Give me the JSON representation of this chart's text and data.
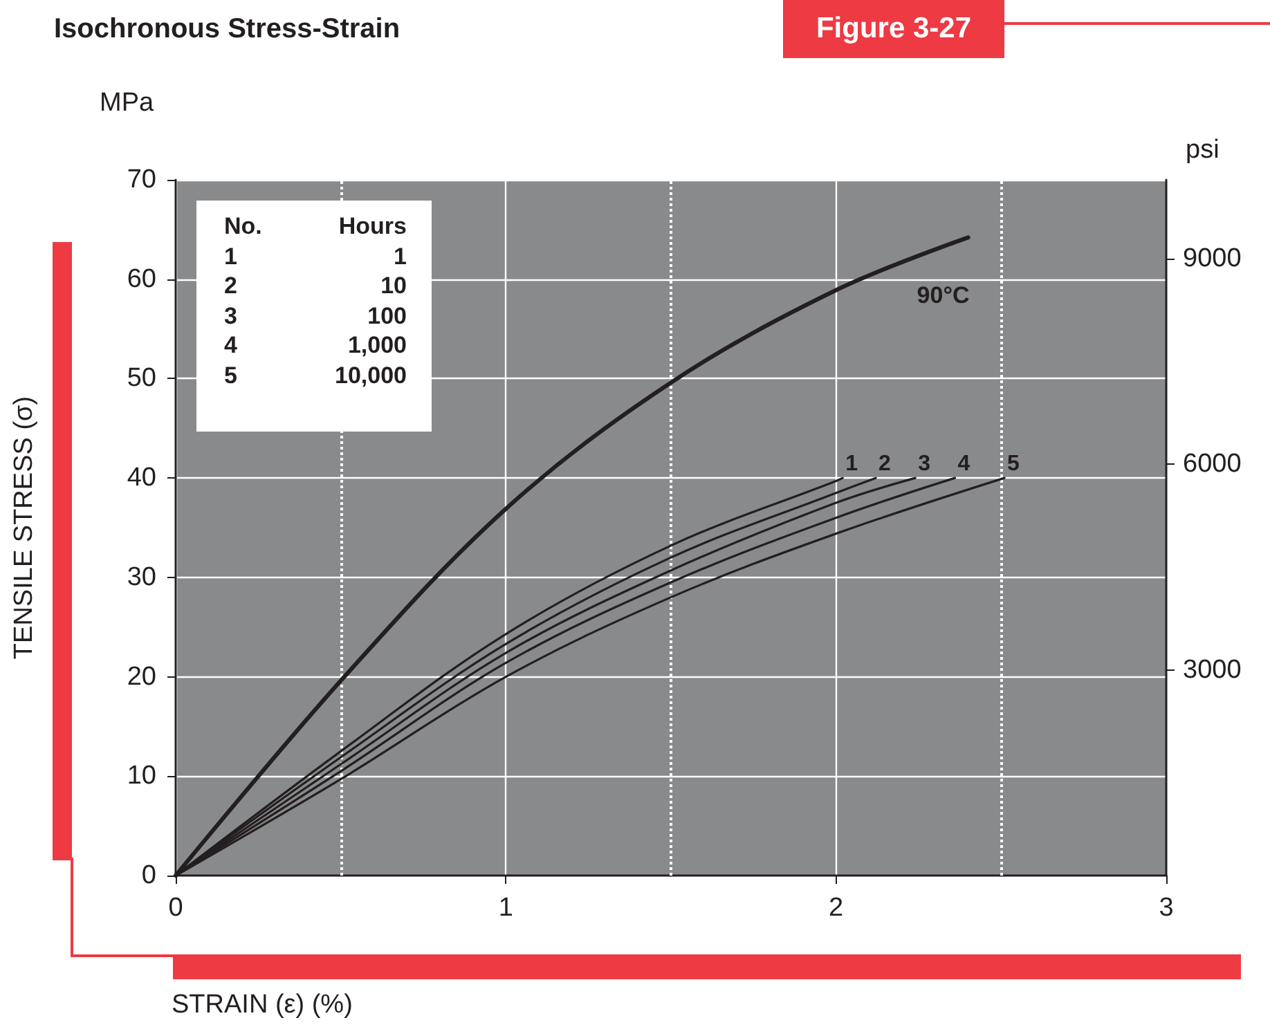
{
  "chart_data": {
    "type": "line",
    "title": "Isochronous Stress-Strain",
    "xlabel": "STRAIN (ε) (%)",
    "ylabel": "TENSILE STRESS (σ)",
    "y2label": "psi",
    "annotations": [
      "Figure 3-27",
      "MPa",
      "No.",
      "Hours",
      "1",
      "1",
      "2",
      "10",
      "3",
      "100",
      "4",
      "1,000",
      "5",
      "10,000"
    ],
    "xlim": [
      0,
      3
    ],
    "xticks": [
      0,
      1,
      2,
      3
    ],
    "ylim": [
      0,
      70
    ],
    "yticks": [
      0,
      10,
      20,
      30,
      40,
      50,
      60,
      70
    ],
    "y2lim": [
      0,
      10150
    ],
    "y2ticks": [
      3000,
      6000,
      9000
    ],
    "grid": true,
    "legend": false,
    "marker": "none",
    "line_style": "solid",
    "ref_lines": [
      {
        "axis": "x",
        "value": 0.5,
        "color": "#ffffff",
        "line_style": "dotted"
      },
      {
        "axis": "x",
        "value": 1.5,
        "color": "#ffffff",
        "line_style": "dotted"
      },
      {
        "axis": "x",
        "value": 2.5,
        "color": "#ffffff",
        "line_style": "dotted"
      }
    ],
    "series": [
      {
        "name": "90°C",
        "color": "#231f20",
        "x": [
          0,
          0.5,
          1,
          1.5,
          2,
          2.4
        ],
        "values": [
          0,
          19.6,
          36.9,
          49.6,
          58.9,
          64.2
        ]
      },
      {
        "name": "1",
        "color": "#231f20",
        "x": [
          0,
          0.5,
          1,
          1.5,
          2,
          2.02
        ],
        "values": [
          0,
          12.5,
          24.3,
          33.2,
          39.7,
          40
        ]
      },
      {
        "name": "2",
        "color": "#231f20",
        "x": [
          0,
          0.5,
          1,
          1.5,
          2,
          2.12
        ],
        "values": [
          0,
          11.9,
          23.3,
          32.0,
          38.5,
          40
        ]
      },
      {
        "name": "3",
        "color": "#231f20",
        "x": [
          0,
          0.5,
          1,
          1.5,
          2,
          2.24
        ],
        "values": [
          0,
          11.2,
          22.4,
          30.7,
          37.5,
          40
        ]
      },
      {
        "name": "4",
        "color": "#231f20",
        "x": [
          0,
          0.5,
          1,
          1.5,
          2,
          2.36
        ],
        "values": [
          0,
          10.5,
          21.4,
          29.5,
          36.0,
          40
        ]
      },
      {
        "name": "5",
        "color": "#231f20",
        "x": [
          0,
          0.5,
          1,
          1.5,
          2,
          2.51
        ],
        "values": [
          0,
          9.7,
          20.0,
          28.0,
          34.4,
          40
        ]
      }
    ]
  }
}
